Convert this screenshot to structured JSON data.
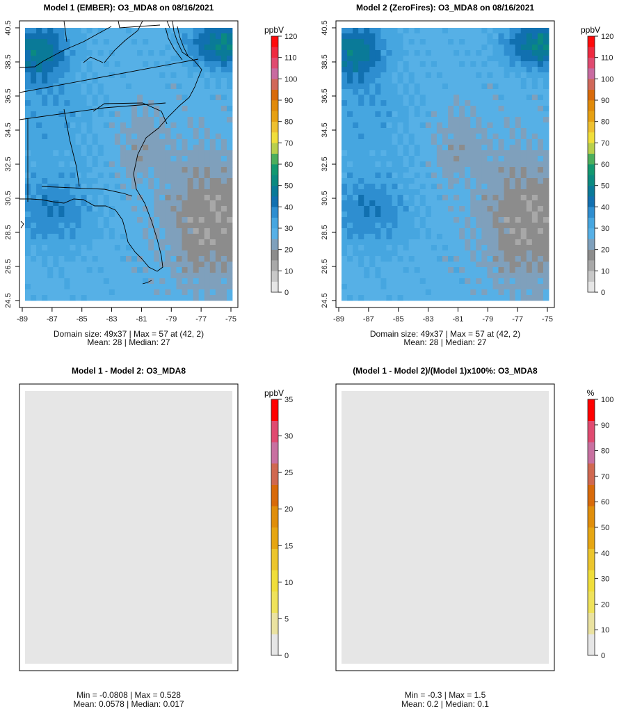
{
  "chart_data": [
    {
      "type": "heatmap",
      "title": "Model 1 (EMBER): O3_MDA8 on 08/16/2021",
      "units": "ppbV",
      "xlim": [
        -89,
        -75
      ],
      "ylim": [
        24.5,
        40.5
      ],
      "xticks": [
        "-89",
        "-87",
        "-85",
        "-83",
        "-81",
        "-79",
        "-77",
        "-75"
      ],
      "yticks": [
        "40.5",
        "38.5",
        "36.5",
        "34.5",
        "32.5",
        "30.5",
        "28.5",
        "26.5",
        "24.5"
      ],
      "colorbar_range": [
        0,
        120
      ],
      "colorbar_ticks": [
        "120",
        "110",
        "100",
        "90",
        "80",
        "70",
        "60",
        "50",
        "40",
        "30",
        "20",
        "10",
        "0"
      ],
      "field": "ember",
      "stats_line1": "Domain size: 49x37 | Max = 57 at (42, 2)",
      "stats_line2": "Mean: 28 |  Median: 27"
    },
    {
      "type": "heatmap",
      "title": "Model 2 (ZeroFires): O3_MDA8 on 08/16/2021",
      "units": "ppbV",
      "xlim": [
        -89,
        -75
      ],
      "ylim": [
        24.5,
        40.5
      ],
      "xticks": [
        "-89",
        "-87",
        "-85",
        "-83",
        "-81",
        "-79",
        "-77",
        "-75"
      ],
      "yticks": [
        "40.5",
        "38.5",
        "36.5",
        "34.5",
        "32.5",
        "30.5",
        "28.5",
        "26.5",
        "24.5"
      ],
      "colorbar_range": [
        0,
        120
      ],
      "colorbar_ticks": [
        "120",
        "110",
        "100",
        "90",
        "80",
        "70",
        "60",
        "50",
        "40",
        "30",
        "20",
        "10",
        "0"
      ],
      "field": "ember",
      "stats_line1": "Domain size: 49x37 | Max = 57 at (42, 2)",
      "stats_line2": "Mean: 28 |  Median: 27"
    },
    {
      "type": "heatmap",
      "title": "Model 1 - Model 2: O3_MDA8",
      "units": "ppbV",
      "colorbar_range": [
        0,
        35
      ],
      "colorbar_ticks": [
        "35",
        "30",
        "25",
        "20",
        "15",
        "10",
        "5",
        "0"
      ],
      "field": "flat",
      "stats_line1": "Min = -0.0808 | Max = 0.528",
      "stats_line2": "Mean: 0.0578 |  Median: 0.017"
    },
    {
      "type": "heatmap",
      "title": "(Model 1 - Model 2)/(Model 1)x100%: O3_MDA8",
      "units": "%",
      "colorbar_range": [
        0,
        100
      ],
      "colorbar_ticks": [
        "100",
        "90",
        "80",
        "70",
        "60",
        "50",
        "40",
        "30",
        "20",
        "10",
        "0"
      ],
      "field": "flat",
      "stats_line1": "Min = -0.3 | Max = 1.5",
      "stats_line2": "Mean: 0.2 |  Median: 0.1"
    }
  ],
  "colors": {
    "flat_field": "#e6e6e6",
    "conc_palette": [
      "#e6e6e6",
      "#c8c8c8",
      "#a8a8a8",
      "#8c8c8c",
      "#7fa0bc",
      "#56b0e6",
      "#46a6e0",
      "#2e8ed0",
      "#1170b0",
      "#0a7a98",
      "#0b8a80",
      "#129870",
      "#4cae5c",
      "#b8cf4c",
      "#f0de3a",
      "#eec030",
      "#e6a012",
      "#e08a0a",
      "#d86a0a",
      "#d0685a",
      "#c86aa0",
      "#e04a70",
      "#ee2a40",
      "#ff0a0a"
    ],
    "diff_palette": [
      "#e6e6e6",
      "#eae2a0",
      "#efe25a",
      "#f0de3a",
      "#ecc52c",
      "#e6a612",
      "#e08e0a",
      "#d86a0a",
      "#d06850",
      "#c870a0",
      "#e04a70",
      "#ff0000"
    ]
  }
}
